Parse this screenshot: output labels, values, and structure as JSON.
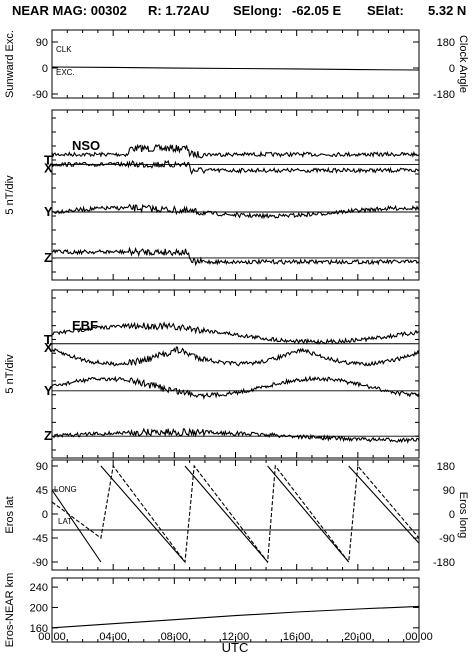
{
  "header": {
    "title": "NEAR MAG: 00302",
    "r": "R: 1.72AU",
    "selong": "SElong:",
    "selong_val": "-62.05 E",
    "selat": "SElat:",
    "selat_val": "5.32 N"
  },
  "chart_data": [
    {
      "type": "line",
      "panel": "sunward",
      "ylabel": "Sunward Exc.",
      "yticks": [
        "90",
        "0",
        "-90"
      ],
      "ylim": [
        -90,
        90
      ],
      "right_label": "Clock Angle",
      "right_ticks": [
        "180",
        "0",
        "-180"
      ],
      "series": [
        {
          "name": "CLK",
          "values": [
            [
              0,
              150
            ],
            [
              4,
              150
            ],
            [
              8,
              147
            ],
            [
              12,
              145
            ],
            [
              16,
              142
            ],
            [
              20,
              140
            ],
            [
              24,
              138
            ]
          ]
        },
        {
          "name": "EXC.",
          "values": [
            [
              0,
              0
            ],
            [
              4,
              -1
            ],
            [
              8,
              -3
            ],
            [
              12,
              -4
            ],
            [
              16,
              -5
            ],
            [
              20,
              -7
            ],
            [
              24,
              -8
            ]
          ]
        }
      ]
    },
    {
      "type": "line",
      "panel": "NSO",
      "title": "NSO",
      "ylabel": "5 nT/div",
      "series": [
        {
          "name": "T",
          "baseline": 0.68
        },
        {
          "name": "X",
          "baseline": 0.68
        },
        {
          "name": "Y",
          "baseline": 0.4
        },
        {
          "name": "Z",
          "baseline": 0.13
        }
      ]
    },
    {
      "type": "line",
      "panel": "EBF",
      "title": "EBF",
      "ylabel": "5 nT/div",
      "series": [
        {
          "name": "T",
          "baseline": 0.68
        },
        {
          "name": "X",
          "baseline": 0.68
        },
        {
          "name": "Y",
          "baseline": 0.4
        },
        {
          "name": "Z",
          "baseline": 0.13
        }
      ]
    },
    {
      "type": "line",
      "panel": "eros",
      "ylabel": "Eros lat",
      "yticks": [
        "90",
        "45",
        "0",
        "-45",
        "-90"
      ],
      "ylim": [
        -90,
        90
      ],
      "right_label": "Eros long",
      "right_ticks": [
        "180",
        "90",
        "0",
        "-90",
        "-180"
      ],
      "series": [
        {
          "name": "LONG",
          "values": [
            [
              0,
              45
            ],
            [
              3.2,
              -90
            ],
            [
              3.2,
              90
            ],
            [
              8.7,
              -90
            ],
            [
              8.7,
              90
            ],
            [
              14.1,
              -90
            ],
            [
              14.1,
              90
            ],
            [
              19.4,
              -90
            ],
            [
              19.4,
              90
            ],
            [
              24,
              -55
            ]
          ]
        },
        {
          "name": "LAT",
          "values": [
            [
              0,
              -30
            ],
            [
              24,
              -30
            ]
          ]
        },
        {
          "name": "long-dashed",
          "values": [
            [
              0,
              45
            ],
            [
              3.2,
              -90
            ],
            [
              4,
              180
            ],
            [
              8.7,
              -180
            ],
            [
              9.3,
              180
            ],
            [
              14.1,
              -180
            ],
            [
              14.6,
              180
            ],
            [
              19.4,
              -180
            ],
            [
              20,
              180
            ],
            [
              24,
              -90
            ]
          ]
        }
      ]
    },
    {
      "type": "line",
      "panel": "range",
      "ylabel": "Eros-NEAR km",
      "yticks": [
        "240",
        "200",
        "160"
      ],
      "ylim": [
        120,
        260
      ],
      "series": [
        {
          "name": "range",
          "values": [
            [
              0,
              160
            ],
            [
              4,
              168
            ],
            [
              8,
              176
            ],
            [
              12,
              184
            ],
            [
              16,
              191
            ],
            [
              20,
              197
            ],
            [
              24,
              202
            ]
          ]
        }
      ]
    }
  ],
  "xaxis": {
    "label": "UTC",
    "ticks": [
      "00:00",
      "04:00",
      "08:00",
      "12:00",
      "16:00",
      "20:00",
      "00:00"
    ],
    "range": [
      0,
      24
    ]
  }
}
